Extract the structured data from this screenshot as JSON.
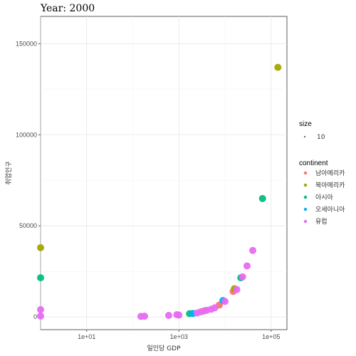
{
  "chart_data": {
    "type": "scatter",
    "title": "Year: 2000",
    "xlabel": "일인당 GDP",
    "ylabel": "취업인구",
    "x_scale": "log10",
    "xlim": [
      1,
      220000
    ],
    "ylim": [
      -7000,
      165000
    ],
    "x_ticks": [
      {
        "value": 10,
        "label": "1e+01"
      },
      {
        "value": 1000,
        "label": "1e+03"
      },
      {
        "value": 100000,
        "label": "1e+05"
      }
    ],
    "y_ticks": [
      {
        "value": 0,
        "label": "0"
      },
      {
        "value": 50000,
        "label": "50000"
      },
      {
        "value": 100000,
        "label": "100000"
      },
      {
        "value": 150000,
        "label": "150000"
      }
    ],
    "grid": true,
    "legend_position": "right",
    "size_legend": {
      "title": "size",
      "label": "10"
    },
    "color_legend": {
      "title": "continent",
      "entries": [
        {
          "name": "남아메리카",
          "color": "#F8766D"
        },
        {
          "name": "북아메리카",
          "color": "#A3A500"
        },
        {
          "name": "아시아",
          "color": "#00BF7D"
        },
        {
          "name": "오세아니아",
          "color": "#00B0F6"
        },
        {
          "name": "유럽",
          "color": "#E76BF3"
        }
      ]
    },
    "series": [
      {
        "name": "남아메리카",
        "color": "#F8766D",
        "points": [
          [
            3500,
            3300
          ],
          [
            7500,
            6500
          ],
          [
            15000,
            14000
          ]
        ]
      },
      {
        "name": "북아메리카",
        "color": "#A3A500",
        "points": [
          [
            1,
            38000
          ],
          [
            16000,
            15500
          ],
          [
            140000,
            137000
          ]
        ]
      },
      {
        "name": "아시아",
        "color": "#00BF7D",
        "points": [
          [
            1,
            21500
          ],
          [
            1700,
            1800
          ],
          [
            22000,
            21500
          ],
          [
            65000,
            65000
          ]
        ]
      },
      {
        "name": "오세아니아",
        "color": "#00B0F6",
        "points": [
          [
            2000,
            1900
          ],
          [
            9000,
            9000
          ]
        ]
      },
      {
        "name": "유럽",
        "color": "#E76BF3",
        "points": [
          [
            1,
            4000
          ],
          [
            1,
            500
          ],
          [
            150,
            300
          ],
          [
            180,
            400
          ],
          [
            600,
            800
          ],
          [
            900,
            1200
          ],
          [
            1000,
            1000
          ],
          [
            2500,
            2200
          ],
          [
            3000,
            2800
          ],
          [
            4000,
            3600
          ],
          [
            5000,
            4200
          ],
          [
            6000,
            5000
          ],
          [
            10000,
            8500
          ],
          [
            18000,
            15000
          ],
          [
            24000,
            22000
          ],
          [
            30000,
            28000
          ],
          [
            40000,
            36500
          ]
        ]
      }
    ]
  }
}
